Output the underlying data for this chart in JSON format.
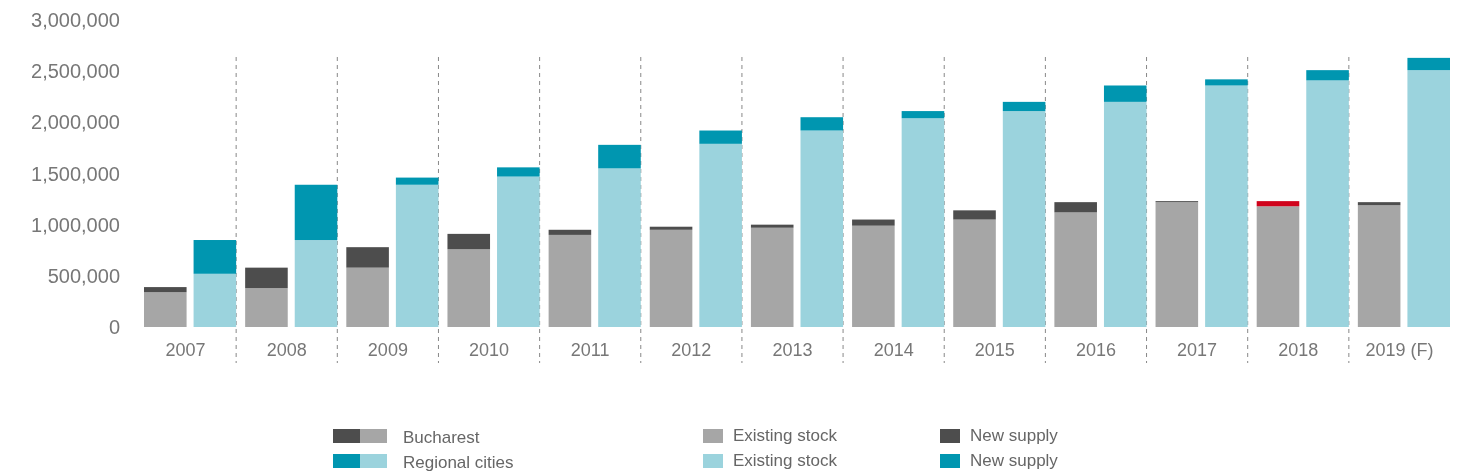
{
  "chart_data": {
    "type": "bar",
    "stacked": true,
    "legend": "bottom",
    "grid": "x",
    "categories": [
      "2007",
      null,
      "2008",
      null,
      "2009",
      null,
      "2010",
      null,
      "2011",
      null,
      "2012",
      null,
      "2013",
      null,
      "2014",
      null,
      "2015",
      null,
      "2016",
      null,
      "2017",
      null,
      "2018",
      null,
      "2019 (F)",
      null
    ],
    "ylim": [
      0,
      3000000
    ],
    "yticks": [
      {
        "value": 0,
        "label": "0"
      },
      {
        "value": 500000,
        "label": "500,000"
      },
      {
        "value": 1000000,
        "label": "1,000,000"
      },
      {
        "value": 1500000,
        "label": "1,500,000"
      },
      {
        "value": 2000000,
        "label": "2,000,000"
      },
      {
        "value": 2500000,
        "label": "2,500,000"
      },
      {
        "value": 3000000,
        "label": "3,000,000"
      }
    ],
    "annotations": [
      "Bucharest",
      "Regional cities"
    ],
    "series": [
      {
        "name": "Existing stock",
        "colors": [
          "#a6a6a6",
          "#9bd3dd",
          "#a6a6a6",
          "#9bd3dd",
          "#a6a6a6",
          "#9bd3dd",
          "#a6a6a6",
          "#9bd3dd",
          "#a6a6a6",
          "#9bd3dd",
          "#a6a6a6",
          "#9bd3dd",
          "#a6a6a6",
          "#9bd3dd",
          "#a6a6a6",
          "#9bd3dd",
          "#a6a6a6",
          "#9bd3dd",
          "#a6a6a6",
          "#9bd3dd",
          "#a6a6a6",
          "#9bd3dd",
          "#a6a6a6",
          "#9bd3dd",
          "#a6a6a6",
          "#9bd3dd"
        ],
        "values": [
          340000,
          520000,
          380000,
          850000,
          580000,
          1390000,
          760000,
          1470000,
          900000,
          1550000,
          950000,
          1790000,
          970000,
          1920000,
          990000,
          2040000,
          1050000,
          2110000,
          1120000,
          2200000,
          1220000,
          2360000,
          1180000,
          2410000,
          1190000,
          2510000
        ]
      },
      {
        "name": "New supply",
        "colors": [
          "#4d4d4d",
          "#0096b0",
          "#4d4d4d",
          "#0096b0",
          "#4d4d4d",
          "#0096b0",
          "#4d4d4d",
          "#0096b0",
          "#4d4d4d",
          "#0096b0",
          "#4d4d4d",
          "#0096b0",
          "#4d4d4d",
          "#0096b0",
          "#4d4d4d",
          "#0096b0",
          "#4d4d4d",
          "#0096b0",
          "#4d4d4d",
          "#0096b0",
          "#4d4d4d",
          "#0096b0",
          "#4d4d4d",
          "#0096b0",
          "#4d4d4d",
          "#0096b0"
        ],
        "values": [
          50000,
          330000,
          200000,
          540000,
          200000,
          70000,
          150000,
          90000,
          50000,
          230000,
          30000,
          130000,
          30000,
          130000,
          60000,
          70000,
          90000,
          90000,
          100000,
          160000,
          10000,
          60000,
          null,
          100000,
          30000,
          120000
        ]
      },
      {
        "color": "#d0021b",
        "values": [
          null,
          null,
          null,
          null,
          null,
          null,
          null,
          null,
          null,
          null,
          null,
          null,
          null,
          null,
          null,
          null,
          null,
          null,
          null,
          null,
          null,
          null,
          50000,
          null,
          null,
          null
        ]
      }
    ]
  }
}
